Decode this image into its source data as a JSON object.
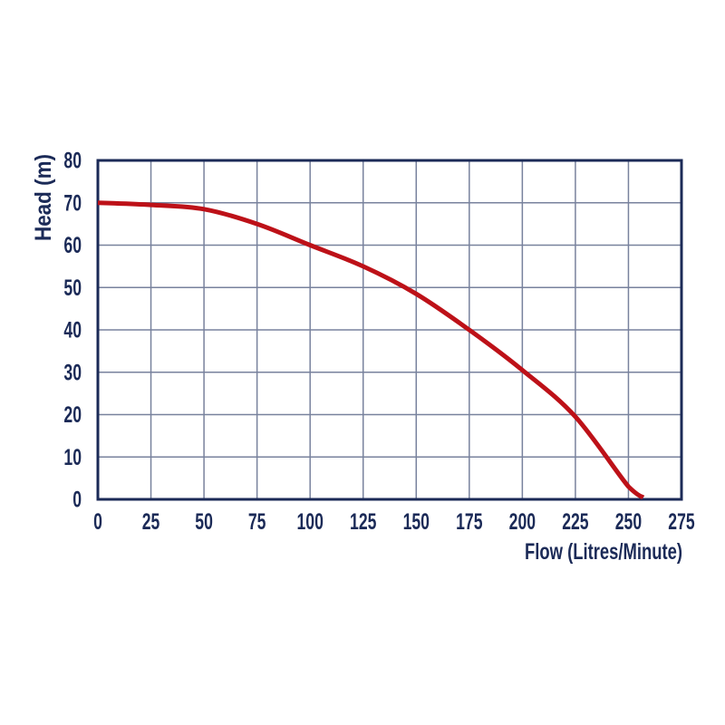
{
  "chart_data": {
    "type": "line",
    "title": "",
    "xlabel": "Flow (Litres/Minute)",
    "ylabel": "Head (m)",
    "xlim": [
      0,
      275
    ],
    "ylim": [
      0,
      80
    ],
    "x_ticks": [
      0,
      25,
      50,
      75,
      100,
      125,
      150,
      175,
      200,
      225,
      250,
      275
    ],
    "y_ticks": [
      0,
      10,
      20,
      30,
      40,
      50,
      60,
      70,
      80
    ],
    "grid": true,
    "legend": "none",
    "series": [
      {
        "name": "pump-performance-curve",
        "color": "#bd1118",
        "points": [
          [
            0,
            70
          ],
          [
            25,
            69.5
          ],
          [
            50,
            68.5
          ],
          [
            75,
            65
          ],
          [
            100,
            60
          ],
          [
            125,
            55
          ],
          [
            150,
            48.5
          ],
          [
            175,
            40
          ],
          [
            200,
            30.5
          ],
          [
            225,
            19.5
          ],
          [
            250,
            3
          ],
          [
            257,
            0
          ]
        ]
      }
    ],
    "colors": {
      "axis_border": "#1b2a57",
      "grid_line": "#78829d",
      "label_text": "#1b2a57",
      "background": "#ffffff"
    }
  }
}
